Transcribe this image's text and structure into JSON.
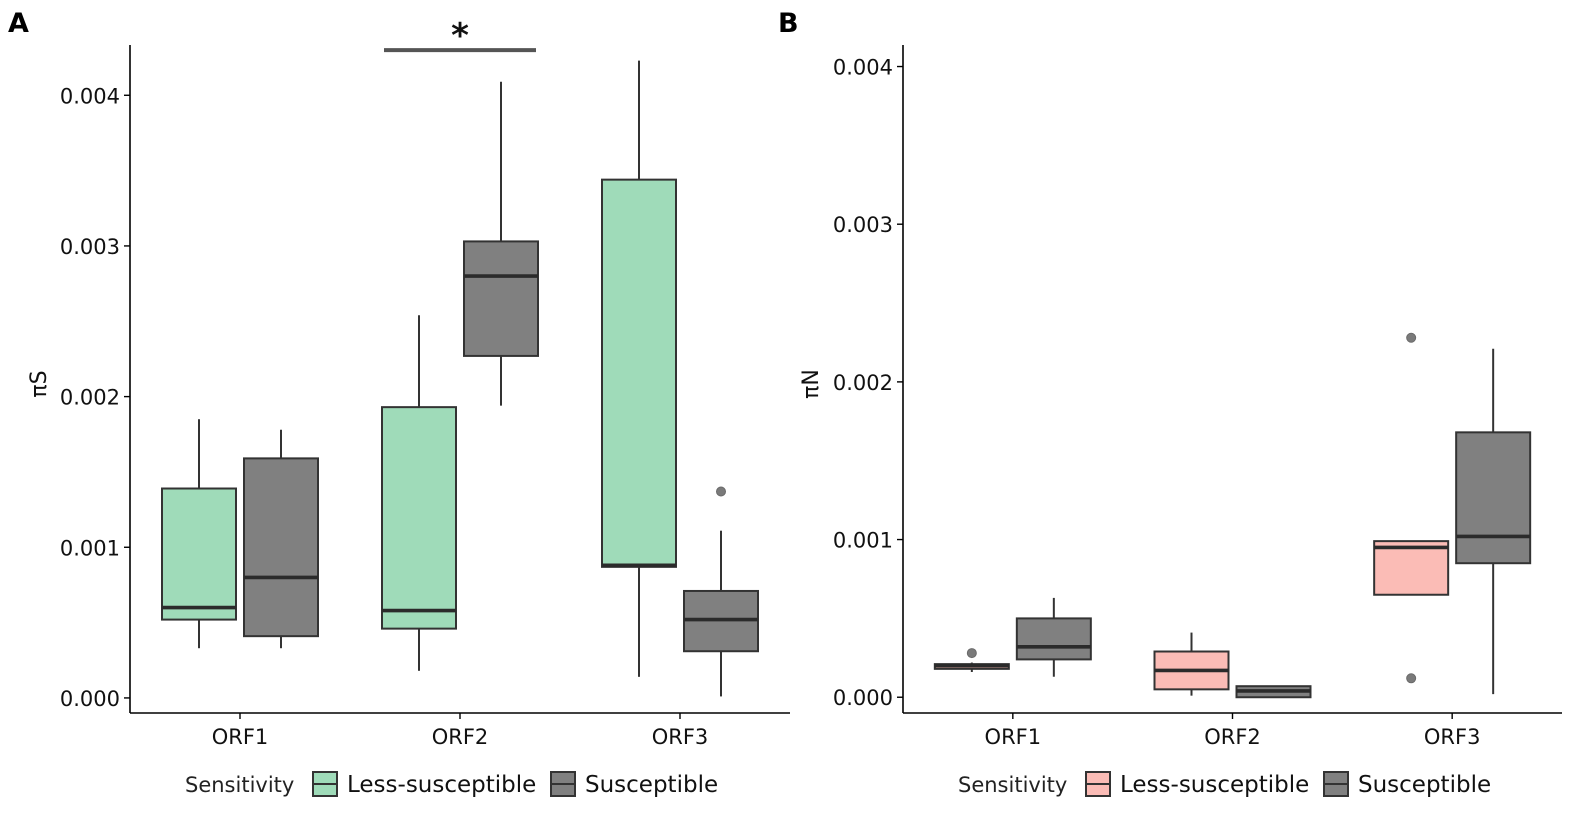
{
  "chart_data": [
    {
      "panel_label": "A",
      "type": "boxplot",
      "title": "",
      "xlabel": "",
      "ylabel": "πS",
      "ylim": [
        -0.0001,
        0.0044
      ],
      "yticks": [
        {
          "value": 0.0,
          "label": "0.000"
        },
        {
          "value": 0.001,
          "label": "0.001"
        },
        {
          "value": 0.002,
          "label": "0.002"
        },
        {
          "value": 0.003,
          "label": "0.003"
        },
        {
          "value": 0.004,
          "label": "0.004"
        }
      ],
      "categories": [
        "ORF1",
        "ORF2",
        "ORF3"
      ],
      "legend": {
        "title": "Sensitivity",
        "position": "bottom",
        "entries": [
          {
            "label": "Less-susceptible",
            "color": "#9fdbb9"
          },
          {
            "label": "Susceptible",
            "color": "#808080"
          }
        ]
      },
      "series": [
        {
          "name": "Less-susceptible",
          "color": "#9fdbb9",
          "boxes": [
            {
              "category": "ORF1",
              "whisker_low": 0.00033,
              "q1": 0.00052,
              "median": 0.0006,
              "q3": 0.00139,
              "whisker_high": 0.00185,
              "outliers": []
            },
            {
              "category": "ORF2",
              "whisker_low": 0.00018,
              "q1": 0.00046,
              "median": 0.00058,
              "q3": 0.00193,
              "whisker_high": 0.00254,
              "outliers": []
            },
            {
              "category": "ORF3",
              "whisker_low": 0.00014,
              "q1": 0.00087,
              "median": 0.00088,
              "q3": 0.00344,
              "whisker_high": 0.00423,
              "outliers": []
            }
          ]
        },
        {
          "name": "Susceptible",
          "color": "#808080",
          "boxes": [
            {
              "category": "ORF1",
              "whisker_low": 0.00033,
              "q1": 0.00041,
              "median": 0.0008,
              "q3": 0.00159,
              "whisker_high": 0.00178,
              "outliers": []
            },
            {
              "category": "ORF2",
              "whisker_low": 0.00194,
              "q1": 0.00227,
              "median": 0.0028,
              "q3": 0.00303,
              "whisker_high": 0.00409,
              "outliers": []
            },
            {
              "category": "ORF3",
              "whisker_low": 1e-05,
              "q1": 0.00031,
              "median": 0.00052,
              "q3": 0.00071,
              "whisker_high": 0.00111,
              "outliers": [
                0.00137
              ]
            }
          ]
        }
      ],
      "annotations": [
        {
          "type": "significance",
          "text": "*",
          "category": "ORF2",
          "value": 0.0043
        }
      ]
    },
    {
      "panel_label": "B",
      "type": "boxplot",
      "title": "",
      "xlabel": "",
      "ylabel": "πN",
      "ylim": [
        -0.0001,
        0.0042
      ],
      "yticks": [
        {
          "value": 0.0,
          "label": "0.000"
        },
        {
          "value": 0.001,
          "label": "0.001"
        },
        {
          "value": 0.002,
          "label": "0.002"
        },
        {
          "value": 0.003,
          "label": "0.003"
        },
        {
          "value": 0.004,
          "label": "0.004"
        }
      ],
      "categories": [
        "ORF1",
        "ORF2",
        "ORF3"
      ],
      "legend": {
        "title": "Sensitivity",
        "position": "bottom",
        "entries": [
          {
            "label": "Less-susceptible",
            "color": "#fbbcb6"
          },
          {
            "label": "Susceptible",
            "color": "#808080"
          }
        ]
      },
      "series": [
        {
          "name": "Less-susceptible",
          "color": "#fbbcb6",
          "boxes": [
            {
              "category": "ORF1",
              "whisker_low": 0.00016,
              "q1": 0.00018,
              "median": 0.0002,
              "q3": 0.00021,
              "whisker_high": 0.00022,
              "outliers": [
                0.00028
              ]
            },
            {
              "category": "ORF2",
              "whisker_low": 1e-05,
              "q1": 5e-05,
              "median": 0.00017,
              "q3": 0.00029,
              "whisker_high": 0.00041,
              "outliers": []
            },
            {
              "category": "ORF3",
              "whisker_low": 0.00065,
              "q1": 0.00065,
              "median": 0.00095,
              "q3": 0.00099,
              "whisker_high": 0.00099,
              "outliers": [
                0.00012,
                0.00228
              ]
            }
          ]
        },
        {
          "name": "Susceptible",
          "color": "#808080",
          "boxes": [
            {
              "category": "ORF1",
              "whisker_low": 0.00013,
              "q1": 0.00024,
              "median": 0.00032,
              "q3": 0.0005,
              "whisker_high": 0.00063,
              "outliers": []
            },
            {
              "category": "ORF2",
              "whisker_low": 0.0,
              "q1": 0.0,
              "median": 4e-05,
              "q3": 7e-05,
              "whisker_high": 7e-05,
              "outliers": []
            },
            {
              "category": "ORF3",
              "whisker_low": 2e-05,
              "q1": 0.00085,
              "median": 0.00102,
              "q3": 0.00168,
              "whisker_high": 0.00221,
              "outliers": []
            }
          ]
        }
      ],
      "annotations": []
    }
  ]
}
